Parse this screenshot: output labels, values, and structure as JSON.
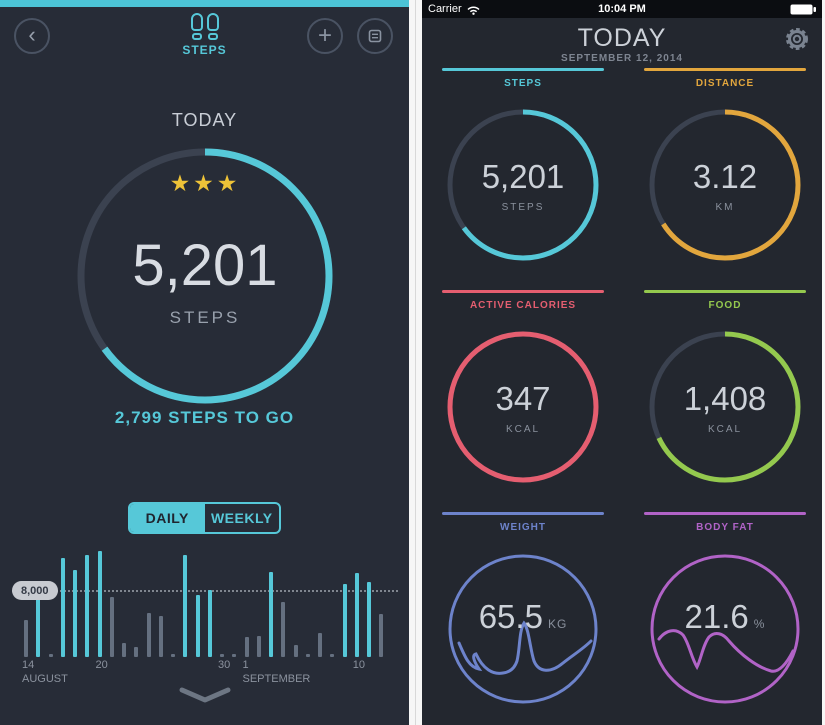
{
  "colors": {
    "teal": "#56c8d8",
    "teal_bar": "#4cc4d6",
    "bg_left": "#272c37",
    "bg_right": "#23272f",
    "track": "#3b4250",
    "gray_bar": "#657080",
    "star": "#eec338",
    "orange": "#e2a63d",
    "pink": "#e55e70",
    "green": "#94c94e",
    "blue": "#6d83cb",
    "purple": "#b163c7"
  },
  "left_screen": {
    "header": {
      "title": "STEPS"
    },
    "today_label": "TODAY",
    "ring": {
      "stars": 3,
      "value": "5,201",
      "unit": "STEPS",
      "togo": "2,799 STEPS TO GO",
      "percent": 65
    },
    "toggle": {
      "daily": "DAILY",
      "weekly": "WEEKLY",
      "selected": "DAILY"
    },
    "chart": {
      "type": "bar",
      "goal_label": "8,000",
      "goal_value": 8000,
      "bars": [
        {
          "v": 4600,
          "c": "g"
        },
        {
          "v": 8300,
          "c": "t"
        },
        {
          "v": 400,
          "c": "g"
        },
        {
          "v": 12200,
          "c": "t"
        },
        {
          "v": 10700,
          "c": "t"
        },
        {
          "v": 12600,
          "c": "t"
        },
        {
          "v": 13100,
          "c": "t"
        },
        {
          "v": 7400,
          "c": "g"
        },
        {
          "v": 1700,
          "c": "g"
        },
        {
          "v": 1200,
          "c": "g"
        },
        {
          "v": 5400,
          "c": "g"
        },
        {
          "v": 5100,
          "c": "g"
        },
        {
          "v": 400,
          "c": "g"
        },
        {
          "v": 12500,
          "c": "t"
        },
        {
          "v": 7600,
          "c": "t"
        },
        {
          "v": 8300,
          "c": "t"
        },
        {
          "v": 400,
          "c": "g"
        },
        {
          "v": 400,
          "c": "g"
        },
        {
          "v": 2500,
          "c": "g"
        },
        {
          "v": 2600,
          "c": "g"
        },
        {
          "v": 10400,
          "c": "t"
        },
        {
          "v": 6800,
          "c": "g"
        },
        {
          "v": 1500,
          "c": "g"
        },
        {
          "v": 400,
          "c": "g"
        },
        {
          "v": 3000,
          "c": "g"
        },
        {
          "v": 400,
          "c": "g"
        },
        {
          "v": 9000,
          "c": "t"
        },
        {
          "v": 10300,
          "c": "t"
        },
        {
          "v": 9200,
          "c": "t"
        },
        {
          "v": 5300,
          "c": "g"
        }
      ],
      "axis_labels": [
        {
          "t": "14",
          "bar": 0,
          "row": 1
        },
        {
          "t": "AUGUST",
          "bar": 0,
          "row": 2
        },
        {
          "t": "20",
          "bar": 6,
          "row": 1
        },
        {
          "t": "30",
          "bar": 16,
          "row": 1
        },
        {
          "t": "1",
          "bar": 18,
          "row": 1
        },
        {
          "t": "SEPTEMBER",
          "bar": 18,
          "row": 2
        },
        {
          "t": "10",
          "bar": 27,
          "row": 1
        }
      ]
    }
  },
  "right_screen": {
    "status_bar": {
      "carrier": "Carrier",
      "time": "10:04 PM"
    },
    "header": {
      "title": "TODAY",
      "date": "SEPTEMBER 12, 2014"
    },
    "metrics": [
      {
        "id": "steps",
        "label": "STEPS",
        "value": "5,201",
        "unit": "STEPS",
        "color": "#56c8d8",
        "percent": 65,
        "style": "arc"
      },
      {
        "id": "distance",
        "label": "DISTANCE",
        "value": "3.12",
        "unit": "KM",
        "color": "#e2a63d",
        "percent": 66,
        "style": "arc"
      },
      {
        "id": "active-calories",
        "label": "ACTIVE CALORIES",
        "value": "347",
        "unit": "KCAL",
        "color": "#e55e70",
        "percent": 100,
        "style": "arc"
      },
      {
        "id": "food",
        "label": "FOOD",
        "value": "1,408",
        "unit": "KCAL",
        "color": "#94c94e",
        "percent": 68,
        "style": "arc"
      },
      {
        "id": "weight",
        "label": "WEIGHT",
        "value": "65.5",
        "unit": "KG",
        "color": "#6d83cb",
        "percent": 100,
        "style": "wave"
      },
      {
        "id": "body-fat",
        "label": "BODY FAT",
        "value": "21.6",
        "unit": "%",
        "color": "#b163c7",
        "percent": 100,
        "style": "wave"
      }
    ]
  }
}
